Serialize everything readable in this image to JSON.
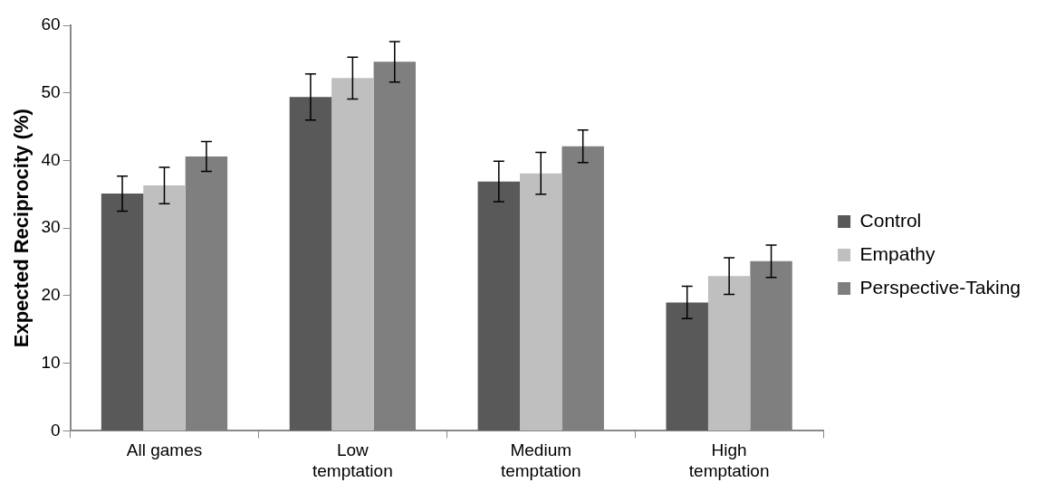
{
  "chart_data": {
    "type": "bar",
    "ylabel": "Expected Reciprocity (%)",
    "categories": [
      "All games",
      "Low temptation",
      "Medium temptation",
      "High temptation"
    ],
    "series": [
      {
        "name": "Control",
        "color": "#595959",
        "values": [
          35.1,
          49.4,
          36.9,
          19.0
        ],
        "errors": [
          2.6,
          3.4,
          3.0,
          2.4
        ]
      },
      {
        "name": "Empathy",
        "color": "#bfbfbf",
        "values": [
          36.3,
          52.2,
          38.1,
          22.9
        ],
        "errors": [
          2.7,
          3.1,
          3.1,
          2.7
        ]
      },
      {
        "name": "Perspective-Taking",
        "color": "#7f7f7f",
        "values": [
          40.6,
          54.6,
          42.1,
          25.1
        ],
        "errors": [
          2.2,
          3.0,
          2.4,
          2.4
        ]
      }
    ],
    "ylim": [
      0,
      60
    ],
    "yticks": [
      0,
      10,
      20,
      30,
      40,
      50,
      60
    ],
    "grid": false,
    "legend": "right"
  }
}
